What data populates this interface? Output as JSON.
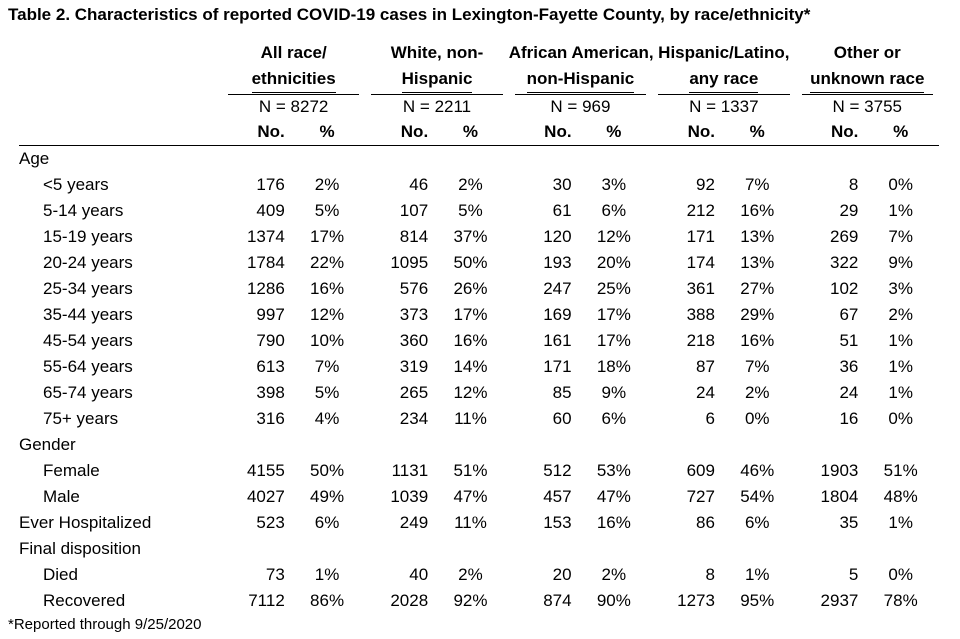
{
  "title": "Table 2. Characteristics of reported COVID-19 cases in Lexington-Fayette County, by race/ethnicity*",
  "groups": [
    {
      "line1": "All race/",
      "line2": "ethnicities",
      "n": "N = 8272"
    },
    {
      "line1": "White, non-",
      "line2": "Hispanic",
      "n": "N = 2211"
    },
    {
      "line1": "African American,",
      "line2": "non-Hispanic",
      "n": "N = 969"
    },
    {
      "line1": "Hispanic/Latino,",
      "line2": "any race",
      "n": "N = 1337"
    },
    {
      "line1": "Other or",
      "line2": "unknown race",
      "n": "N = 3755"
    }
  ],
  "col_no": "No.",
  "col_pct": "%",
  "rows": [
    {
      "label": "Age",
      "section": true
    },
    {
      "label": "<5 years",
      "values": [
        "176",
        "2%",
        "46",
        "2%",
        "30",
        "3%",
        "92",
        "7%",
        "8",
        "0%"
      ]
    },
    {
      "label": "5-14 years",
      "values": [
        "409",
        "5%",
        "107",
        "5%",
        "61",
        "6%",
        "212",
        "16%",
        "29",
        "1%"
      ]
    },
    {
      "label": "15-19 years",
      "values": [
        "1374",
        "17%",
        "814",
        "37%",
        "120",
        "12%",
        "171",
        "13%",
        "269",
        "7%"
      ]
    },
    {
      "label": "20-24 years",
      "values": [
        "1784",
        "22%",
        "1095",
        "50%",
        "193",
        "20%",
        "174",
        "13%",
        "322",
        "9%"
      ]
    },
    {
      "label": "25-34 years",
      "values": [
        "1286",
        "16%",
        "576",
        "26%",
        "247",
        "25%",
        "361",
        "27%",
        "102",
        "3%"
      ]
    },
    {
      "label": "35-44 years",
      "values": [
        "997",
        "12%",
        "373",
        "17%",
        "169",
        "17%",
        "388",
        "29%",
        "67",
        "2%"
      ]
    },
    {
      "label": "45-54 years",
      "values": [
        "790",
        "10%",
        "360",
        "16%",
        "161",
        "17%",
        "218",
        "16%",
        "51",
        "1%"
      ]
    },
    {
      "label": "55-64 years",
      "values": [
        "613",
        "7%",
        "319",
        "14%",
        "171",
        "18%",
        "87",
        "7%",
        "36",
        "1%"
      ]
    },
    {
      "label": "65-74 years",
      "values": [
        "398",
        "5%",
        "265",
        "12%",
        "85",
        "9%",
        "24",
        "2%",
        "24",
        "1%"
      ]
    },
    {
      "label": "75+ years",
      "values": [
        "316",
        "4%",
        "234",
        "11%",
        "60",
        "6%",
        "6",
        "0%",
        "16",
        "0%"
      ]
    },
    {
      "label": "Gender",
      "section": true
    },
    {
      "label": "Female",
      "values": [
        "4155",
        "50%",
        "1131",
        "51%",
        "512",
        "53%",
        "609",
        "46%",
        "1903",
        "51%"
      ]
    },
    {
      "label": "Male",
      "values": [
        "4027",
        "49%",
        "1039",
        "47%",
        "457",
        "47%",
        "727",
        "54%",
        "1804",
        "48%"
      ]
    },
    {
      "label": "Ever Hospitalized",
      "top": true,
      "values": [
        "523",
        "6%",
        "249",
        "11%",
        "153",
        "16%",
        "86",
        "6%",
        "35",
        "1%"
      ]
    },
    {
      "label": "Final disposition",
      "section": true
    },
    {
      "label": "Died",
      "values": [
        "73",
        "1%",
        "40",
        "2%",
        "20",
        "2%",
        "8",
        "1%",
        "5",
        "0%"
      ]
    },
    {
      "label": "Recovered",
      "values": [
        "7112",
        "86%",
        "2028",
        "92%",
        "874",
        "90%",
        "1273",
        "95%",
        "2937",
        "78%"
      ]
    }
  ],
  "footnote": "*Reported through 9/25/2020"
}
